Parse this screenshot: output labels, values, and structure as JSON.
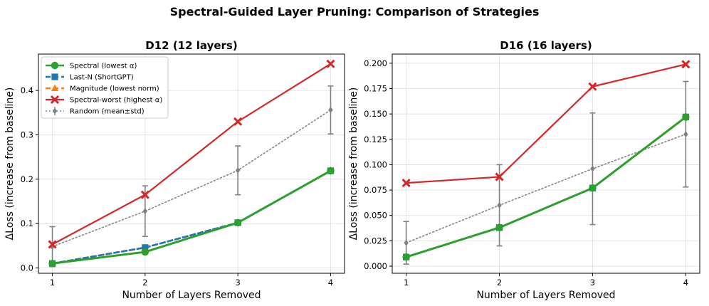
{
  "figure_title": "Spectral-Guided Layer Pruning: Comparison of Strategies",
  "chart_data": [
    {
      "type": "line",
      "title": "D12 (12 layers)",
      "xlabel": "Number of Layers Removed",
      "ylabel": "ΔLoss (increase from baseline)",
      "x": [
        1,
        2,
        3,
        4
      ],
      "xticks": [
        "1",
        "2",
        "3",
        "4"
      ],
      "xlim": [
        0.85,
        4.15
      ],
      "ylim": [
        -0.012,
        0.482
      ],
      "yticks": [
        "0.0",
        "0.1",
        "0.2",
        "0.3",
        "0.4"
      ],
      "ytick_values": [
        0,
        0.1,
        0.2,
        0.3,
        0.4
      ],
      "grid": true,
      "legend": "upper-left",
      "series": [
        {
          "name": "Spectral (lowest α)",
          "key": "spectral",
          "color": "#2ca02c",
          "values": [
            0.01,
            0.036,
            0.102,
            0.219
          ]
        },
        {
          "name": "Last-N (ShortGPT)",
          "key": "lastn",
          "color": "#1f77b4",
          "values": [
            0.01,
            0.046,
            0.102,
            0.219
          ]
        },
        {
          "name": "Magnitude (lowest norm)",
          "key": "magnitude",
          "color": "#ff7f0e",
          "values": [
            0.01,
            0.046,
            0.102,
            0.219
          ]
        },
        {
          "name": "Spectral-worst (highest α)",
          "key": "worst",
          "color": "#d62728",
          "values": [
            0.053,
            0.165,
            0.33,
            0.46
          ]
        },
        {
          "name": "Random (mean±std)",
          "key": "random",
          "color": "#808080",
          "values": [
            0.048,
            0.128,
            0.22,
            0.356
          ],
          "std": [
            0.045,
            0.057,
            0.055,
            0.054
          ]
        }
      ]
    },
    {
      "type": "line",
      "title": "D16 (16 layers)",
      "xlabel": "Number of Layers Removed",
      "ylabel": "ΔLoss (increase from baseline)",
      "x": [
        1,
        2,
        3,
        4
      ],
      "xticks": [
        "1",
        "2",
        "3",
        "4"
      ],
      "xlim": [
        0.85,
        4.15
      ],
      "ylim": [
        -0.007,
        0.209
      ],
      "yticks": [
        "0.000",
        "0.025",
        "0.050",
        "0.075",
        "0.100",
        "0.125",
        "0.150",
        "0.175",
        "0.200"
      ],
      "ytick_values": [
        0,
        0.025,
        0.05,
        0.075,
        0.1,
        0.125,
        0.15,
        0.175,
        0.2
      ],
      "grid": true,
      "series": [
        {
          "name": "Spectral (lowest α)",
          "key": "spectral",
          "color": "#2ca02c",
          "values": [
            0.009,
            0.038,
            0.077,
            0.147
          ]
        },
        {
          "name": "Last-N (ShortGPT)",
          "key": "lastn",
          "color": "#1f77b4",
          "values": [
            0.009,
            0.038,
            0.077,
            0.147
          ]
        },
        {
          "name": "Magnitude (lowest norm)",
          "key": "magnitude",
          "color": "#ff7f0e",
          "values": [
            0.009,
            0.038,
            0.077,
            0.147
          ]
        },
        {
          "name": "Spectral-worst (highest α)",
          "key": "worst",
          "color": "#d62728",
          "values": [
            0.082,
            0.088,
            0.177,
            0.199
          ]
        },
        {
          "name": "Random (mean±std)",
          "key": "random",
          "color": "#808080",
          "values": [
            0.023,
            0.06,
            0.096,
            0.13
          ],
          "std": [
            0.021,
            0.04,
            0.055,
            0.052
          ]
        }
      ]
    }
  ]
}
